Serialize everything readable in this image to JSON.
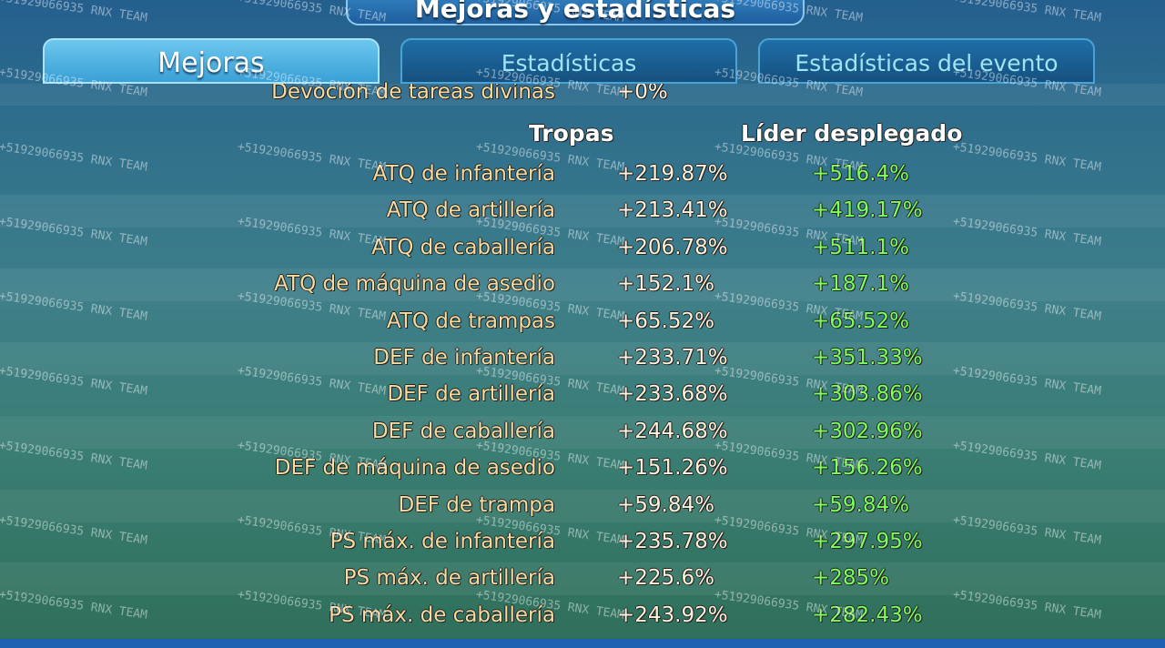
{
  "header": {
    "title": "Mejoras y estadísticas"
  },
  "tabs": [
    "Mejoras",
    "Estadísticas",
    "Estadísticas del evento"
  ],
  "partial_row": {
    "label": "Devoción de tareas divinas",
    "value": "+0%"
  },
  "table": {
    "columns": [
      "Tropas",
      "Líder desplegado"
    ],
    "rows": [
      [
        "ATQ de infantería",
        "+219.87%",
        "+516.4%"
      ],
      [
        "ATQ de artillería",
        "+213.41%",
        "+419.17%"
      ],
      [
        "ATQ de caballería",
        "+206.78%",
        "+511.1%"
      ],
      [
        "ATQ de máquina de asedio",
        "+152.1%",
        "+187.1%"
      ],
      [
        "ATQ de trampas",
        "+65.52%",
        "+65.52%"
      ],
      [
        "DEF de infantería",
        "+233.71%",
        "+351.33%"
      ],
      [
        "DEF de artillería",
        "+233.68%",
        "+303.86%"
      ],
      [
        "DEF de caballería",
        "+244.68%",
        "+302.96%"
      ],
      [
        "DEF de máquina de asedio",
        "+151.26%",
        "+156.26%"
      ],
      [
        "DEF de trampa",
        "+59.84%",
        "+59.84%"
      ],
      [
        "PS máx. de infantería",
        "+235.78%",
        "+297.95%"
      ],
      [
        "PS máx. de artillería",
        "+225.6%",
        "+285%"
      ],
      [
        "PS máx. de caballería",
        "+243.92%",
        "+282.43%"
      ]
    ]
  },
  "watermark": "+51929066935 RNX TEAM"
}
